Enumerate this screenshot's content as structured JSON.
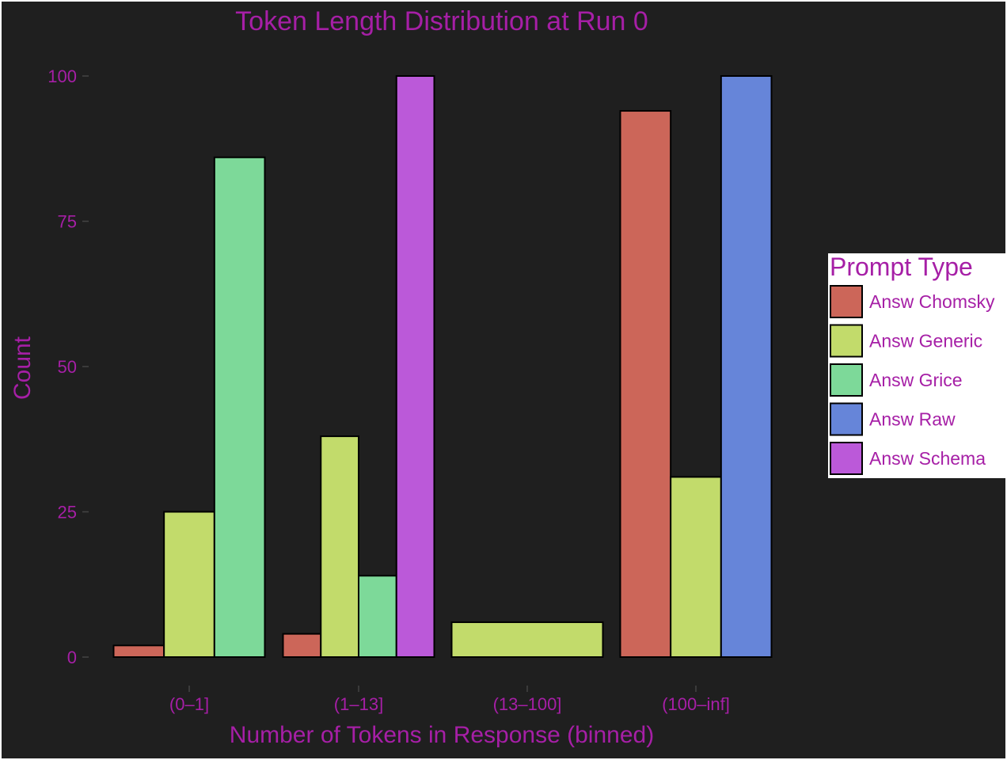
{
  "chart_data": {
    "type": "bar",
    "title": "Token Length Distribution at Run 0",
    "xlabel": "Number of Tokens in Response (binned)",
    "ylabel": "Count",
    "categories": [
      "(0–1]",
      "(1–13]",
      "(13–100]",
      "(100–inf]"
    ],
    "ylim": [
      0,
      100
    ],
    "yticks": [
      0,
      25,
      50,
      75,
      100
    ],
    "legend": {
      "title": "Prompt Type",
      "position": "right"
    },
    "series": [
      {
        "name": "Answ Chomsky",
        "color": "#cc6659",
        "values": [
          2,
          4,
          null,
          94
        ]
      },
      {
        "name": "Answ Generic",
        "color": "#c2db6b",
        "values": [
          25,
          38,
          6,
          31
        ]
      },
      {
        "name": "Answ Grice",
        "color": "#7dd999",
        "values": [
          86,
          14,
          null,
          null
        ]
      },
      {
        "name": "Answ Raw",
        "color": "#6685d9",
        "values": [
          null,
          null,
          null,
          100
        ]
      },
      {
        "name": "Answ Schema",
        "color": "#bb59d9",
        "values": [
          null,
          100,
          null,
          null
        ]
      }
    ]
  }
}
